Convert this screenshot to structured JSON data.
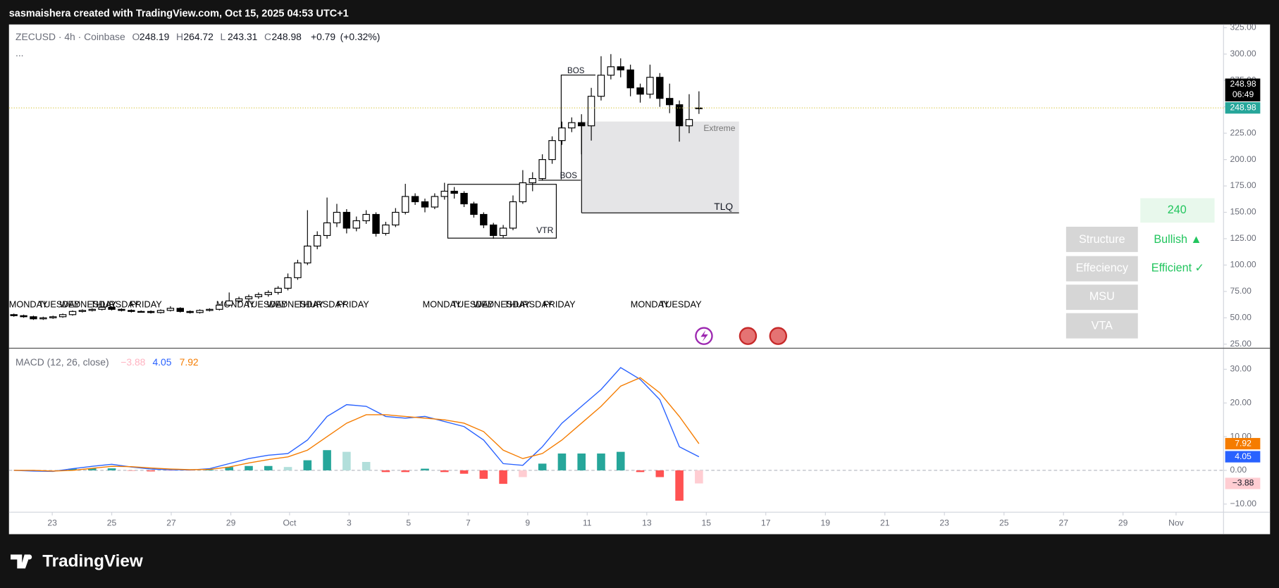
{
  "header": {
    "byline": "sasmaishera created with TradingView.com, Oct 15, 2025 04:53 UTC+1"
  },
  "logo": "TradingView",
  "chart_data": [
    {
      "type": "candlestick",
      "title": "ZECUSD · 4h · Coinbase",
      "more": "...",
      "legend_prefixes": [
        "O",
        "H",
        "L",
        "C"
      ],
      "change": {
        "value": 0.79,
        "label": "+0.79"
      },
      "change_pct": {
        "value": 0.32,
        "label": "(+0.32%)"
      },
      "countdown": "06:49",
      "up_color": "#ffffff",
      "down_color": "#000000",
      "edge_color": "#000000",
      "last_price_color": "#26a69a",
      "last_price_line_color": "#d8c84a",
      "ohlc": [
        [
          53,
          54,
          51,
          52
        ],
        [
          52,
          53,
          50,
          51
        ],
        [
          51,
          52,
          48,
          49
        ],
        [
          49,
          51,
          48,
          50
        ],
        [
          50,
          52,
          49,
          51
        ],
        [
          51,
          54,
          50,
          53
        ],
        [
          53,
          57,
          52,
          56
        ],
        [
          56,
          58,
          55,
          57
        ],
        [
          57,
          59,
          56,
          58
        ],
        [
          58,
          61,
          57,
          60
        ],
        [
          60,
          61,
          57,
          58
        ],
        [
          58,
          59,
          56,
          57
        ],
        [
          57,
          58,
          55,
          56
        ],
        [
          56,
          57,
          55,
          56
        ],
        [
          56,
          57,
          54,
          55
        ],
        [
          55,
          58,
          54,
          57
        ],
        [
          57,
          61,
          56,
          59
        ],
        [
          59,
          60,
          55,
          56
        ],
        [
          56,
          57,
          54,
          55
        ],
        [
          55,
          58,
          54,
          57
        ],
        [
          57,
          59,
          56,
          58
        ],
        [
          58,
          63,
          57,
          62
        ],
        [
          62,
          74,
          61,
          66
        ],
        [
          66,
          70,
          64,
          68
        ],
        [
          68,
          72,
          66,
          70
        ],
        [
          70,
          74,
          68,
          72
        ],
        [
          72,
          76,
          70,
          74
        ],
        [
          74,
          80,
          72,
          78
        ],
        [
          78,
          92,
          76,
          88
        ],
        [
          88,
          105,
          86,
          102
        ],
        [
          102,
          152,
          100,
          118
        ],
        [
          118,
          132,
          115,
          128
        ],
        [
          128,
          164,
          125,
          140
        ],
        [
          140,
          158,
          136,
          150
        ],
        [
          150,
          153,
          130,
          135
        ],
        [
          135,
          146,
          132,
          142
        ],
        [
          142,
          152,
          139,
          148
        ],
        [
          148,
          150,
          127,
          130
        ],
        [
          130,
          141,
          128,
          138
        ],
        [
          138,
          154,
          136,
          150
        ],
        [
          150,
          177,
          148,
          165
        ],
        [
          165,
          168,
          157,
          160
        ],
        [
          160,
          163,
          150,
          155
        ],
        [
          155,
          168,
          153,
          165
        ],
        [
          165,
          178,
          162,
          170
        ],
        [
          170,
          174,
          163,
          168
        ],
        [
          168,
          170,
          155,
          158
        ],
        [
          158,
          160,
          145,
          148
        ],
        [
          148,
          150,
          135,
          138
        ],
        [
          138,
          140,
          125,
          128
        ],
        [
          128,
          138,
          126,
          135
        ],
        [
          135,
          166,
          133,
          160
        ],
        [
          160,
          190,
          158,
          178
        ],
        [
          178,
          188,
          170,
          182
        ],
        [
          182,
          205,
          180,
          200
        ],
        [
          200,
          222,
          196,
          218
        ],
        [
          218,
          236,
          214,
          230
        ],
        [
          230,
          240,
          226,
          235
        ],
        [
          235,
          243,
          205,
          232
        ],
        [
          232,
          268,
          218,
          260
        ],
        [
          260,
          298,
          256,
          280
        ],
        [
          280,
          300,
          276,
          288
        ],
        [
          288,
          296,
          278,
          285
        ],
        [
          285,
          290,
          260,
          268
        ],
        [
          268,
          272,
          254,
          262
        ],
        [
          262,
          290,
          258,
          278
        ],
        [
          278,
          282,
          250,
          258
        ],
        [
          258,
          272,
          244,
          252
        ],
        [
          252,
          256,
          217,
          232
        ],
        [
          232,
          262,
          225,
          238
        ],
        [
          248.19,
          264.72,
          243.31,
          248.98
        ]
      ],
      "xlim": [
        -0.5,
        123.6
      ],
      "xticks": [
        {
          "value": 3.92,
          "label": "23"
        },
        {
          "value": 10,
          "label": "25"
        },
        {
          "value": 16.08,
          "label": "27"
        },
        {
          "value": 22.17,
          "label": "29"
        },
        {
          "value": 28.17,
          "label": "Oct"
        },
        {
          "value": 34.25,
          "label": "3"
        },
        {
          "value": 40.33,
          "label": "5"
        },
        {
          "value": 46.42,
          "label": "7"
        },
        {
          "value": 52.5,
          "label": "9"
        },
        {
          "value": 58.58,
          "label": "11"
        },
        {
          "value": 64.67,
          "label": "13"
        },
        {
          "value": 70.75,
          "label": "15"
        },
        {
          "value": 76.83,
          "label": "17"
        },
        {
          "value": 82.92,
          "label": "19"
        },
        {
          "value": 89,
          "label": "21"
        },
        {
          "value": 95.08,
          "label": "23"
        },
        {
          "value": 101.17,
          "label": "25"
        },
        {
          "value": 107.25,
          "label": "27"
        },
        {
          "value": 113.33,
          "label": "29"
        },
        {
          "value": 118.75,
          "label": "Nov"
        }
      ],
      "ylim": [
        25,
        325
      ],
      "yticks": [
        {
          "value": 25,
          "label": "25.00"
        },
        {
          "value": 50,
          "label": "50.00"
        },
        {
          "value": 75,
          "label": "75.00"
        },
        {
          "value": 100,
          "label": "100.00"
        },
        {
          "value": 125,
          "label": "125.00"
        },
        {
          "value": 150,
          "label": "150.00"
        },
        {
          "value": 175,
          "label": "175.00"
        },
        {
          "value": 200,
          "label": "200.00"
        },
        {
          "value": 225,
          "label": "225.00"
        },
        {
          "value": 250,
          "label": "250.00"
        },
        {
          "value": 275,
          "label": "275.00"
        },
        {
          "value": 300,
          "label": "300.00"
        },
        {
          "value": 325,
          "label": "325.00"
        }
      ],
      "session_labels": [
        [
          "MONDAY",
          "TUESDAY",
          "WEDNESDAY",
          "THURSDAY",
          "FRIDAY"
        ],
        [
          "MONDAY",
          "TUESDAY",
          "WEDNESDAY",
          "THURSDAY",
          "FRIDAY"
        ],
        [
          "MONDAY",
          "TUESDAY",
          "WEDNESDAY",
          "THURSDAY",
          "FRIDAY"
        ],
        [
          "MONDAY",
          "TUESDAY"
        ]
      ],
      "annotations": [
        "BOS",
        "BOS",
        "VTR",
        "Extreme",
        "TLQ"
      ]
    },
    {
      "type": "macd",
      "title": "MACD (12, 26, close)",
      "x": [
        0,
        2,
        4,
        6,
        8,
        10,
        12,
        14,
        16,
        18,
        20,
        22,
        24,
        26,
        28,
        30,
        32,
        34,
        36,
        38,
        40,
        42,
        44,
        46,
        48,
        50,
        52,
        54,
        56,
        58,
        60,
        62,
        64,
        66,
        68,
        70
      ],
      "xlim": [
        -0.5,
        123.6
      ],
      "histogram": {
        "values": [
          0,
          -0.2,
          -0.1,
          0.5,
          0.6,
          0.6,
          -0.1,
          -0.3,
          -0.2,
          -0.1,
          0.2,
          1,
          1.3,
          1.3,
          1,
          3,
          6,
          5.5,
          2.5,
          -0.5,
          -0.5,
          0.5,
          -0.5,
          -1,
          -2.5,
          -4,
          -2,
          2,
          5,
          5,
          5,
          5.5,
          -0.5,
          -2,
          -9,
          -3.88
        ],
        "last_label": "−3.88",
        "colors": [
          "#26a69a",
          "#b2dfdb",
          "#ff5252",
          "#ffcdd2"
        ]
      },
      "macd": {
        "color": "#2962ff",
        "values": [
          0,
          -0.2,
          -0.3,
          0.5,
          1.2,
          1.8,
          1,
          0.4,
          0.2,
          0.1,
          0.5,
          2,
          3.5,
          4.5,
          5,
          9,
          16,
          19.5,
          19,
          16,
          15.5,
          16,
          14.5,
          13,
          9,
          2,
          1.5,
          7,
          14,
          19,
          24,
          30.5,
          27,
          21,
          7,
          4.05
        ]
      },
      "signal": {
        "color": "#f57c00",
        "values": [
          0,
          0,
          -0.2,
          0,
          0.6,
          1.2,
          1.1,
          0.7,
          0.4,
          0.2,
          0.3,
          1,
          2.2,
          3.2,
          4,
          6,
          10,
          14,
          16.5,
          16.5,
          16,
          15.5,
          15,
          14,
          11.5,
          6,
          3.5,
          5,
          9,
          14,
          19,
          25,
          27.5,
          23,
          16,
          7.92
        ]
      },
      "ylim": [
        -12.4,
        36
      ],
      "yticks": [
        {
          "value": -10,
          "label": "−10.00"
        },
        {
          "value": 0,
          "label": "0.00"
        },
        {
          "value": 10,
          "label": "10.00"
        },
        {
          "value": 20,
          "label": "20.00"
        },
        {
          "value": 30,
          "label": "30.00"
        }
      ]
    }
  ],
  "table": {
    "header": "240",
    "rows": [
      [
        "Structure",
        "Bullish ▲"
      ],
      [
        "Effeciency",
        "Efficient ✓"
      ],
      [
        "MSU"
      ],
      [
        "VTA"
      ]
    ]
  }
}
